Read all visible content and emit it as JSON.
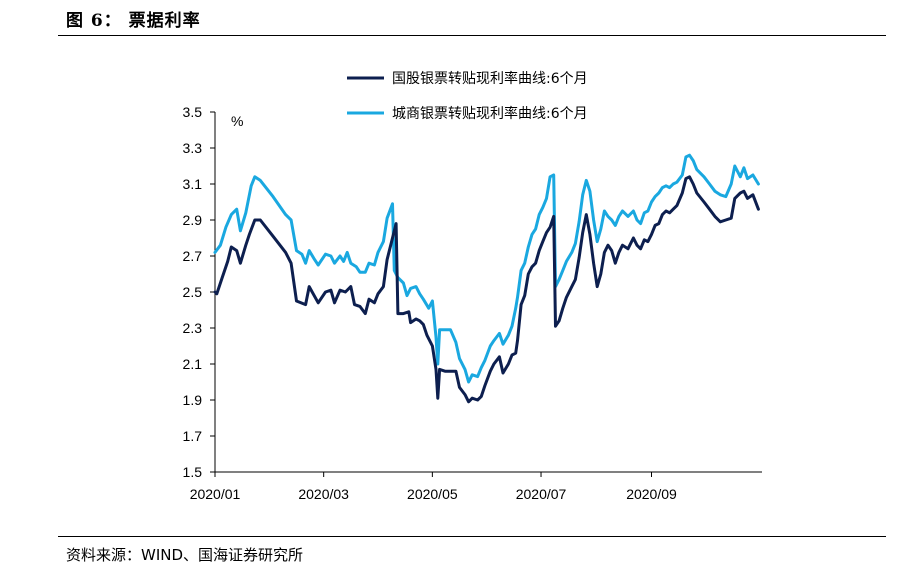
{
  "figure_title": "图 6：  票据利率",
  "source": "资料来源：WIND、国海证券研究所",
  "chart_data": {
    "type": "line",
    "unit_label": "%",
    "ylim": [
      1.5,
      3.5
    ],
    "yticks": [
      1.5,
      1.7,
      1.9,
      2.1,
      2.3,
      2.5,
      2.7,
      2.9,
      3.1,
      3.3,
      3.5
    ],
    "ytick_labels": [
      "1.5",
      "1.7",
      "1.9",
      "2.1",
      "2.3",
      "2.5",
      "2.7",
      "2.9",
      "3.1",
      "3.3",
      "3.5"
    ],
    "xlim": [
      "2020-01-02",
      "2020-10-30"
    ],
    "xticks": [
      "2020-01-02",
      "2020-03-02",
      "2020-05-01",
      "2020-06-30",
      "2020-08-30"
    ],
    "xtick_labels": [
      "2020/01",
      "2020/03",
      "2020/05",
      "2020/07",
      "2020/09"
    ],
    "grid": false,
    "legend_position": "top-center",
    "series": [
      {
        "name": "国股银票转贴现利率曲线:6个月",
        "color": "#0d1f4f",
        "points": [
          [
            "2020-01-02",
            2.5
          ],
          [
            "2020-01-03",
            2.49
          ],
          [
            "2020-01-06",
            2.58
          ],
          [
            "2020-01-09",
            2.67
          ],
          [
            "2020-01-11",
            2.75
          ],
          [
            "2020-01-14",
            2.73
          ],
          [
            "2020-01-16",
            2.66
          ],
          [
            "2020-01-19",
            2.76
          ],
          [
            "2020-01-21",
            2.82
          ],
          [
            "2020-01-24",
            2.9
          ],
          [
            "2020-01-27",
            2.9
          ],
          [
            "2020-02-03",
            2.81
          ],
          [
            "2020-02-10",
            2.72
          ],
          [
            "2020-02-13",
            2.66
          ],
          [
            "2020-02-16",
            2.45
          ],
          [
            "2020-02-21",
            2.43
          ],
          [
            "2020-02-23",
            2.53
          ],
          [
            "2020-02-28",
            2.44
          ],
          [
            "2020-03-03",
            2.5
          ],
          [
            "2020-03-06",
            2.51
          ],
          [
            "2020-03-08",
            2.44
          ],
          [
            "2020-03-11",
            2.51
          ],
          [
            "2020-03-14",
            2.5
          ],
          [
            "2020-03-17",
            2.53
          ],
          [
            "2020-03-19",
            2.43
          ],
          [
            "2020-03-22",
            2.42
          ],
          [
            "2020-03-25",
            2.38
          ],
          [
            "2020-03-27",
            2.46
          ],
          [
            "2020-03-30",
            2.44
          ],
          [
            "2020-04-01",
            2.49
          ],
          [
            "2020-04-04",
            2.53
          ],
          [
            "2020-04-06",
            2.68
          ],
          [
            "2020-04-09",
            2.8
          ],
          [
            "2020-04-11",
            2.88
          ],
          [
            "2020-04-12",
            2.38
          ],
          [
            "2020-04-15",
            2.38
          ],
          [
            "2020-04-18",
            2.39
          ],
          [
            "2020-04-19",
            2.33
          ],
          [
            "2020-04-22",
            2.35
          ],
          [
            "2020-04-24",
            2.34
          ],
          [
            "2020-04-26",
            2.32
          ],
          [
            "2020-04-28",
            2.26
          ],
          [
            "2020-05-01",
            2.2
          ],
          [
            "2020-05-03",
            2.07
          ],
          [
            "2020-05-04",
            1.91
          ],
          [
            "2020-05-05",
            2.07
          ],
          [
            "2020-05-08",
            2.06
          ],
          [
            "2020-05-11",
            2.06
          ],
          [
            "2020-05-14",
            2.06
          ],
          [
            "2020-05-16",
            1.97
          ],
          [
            "2020-05-19",
            1.93
          ],
          [
            "2020-05-21",
            1.89
          ],
          [
            "2020-05-23",
            1.91
          ],
          [
            "2020-05-26",
            1.9
          ],
          [
            "2020-05-28",
            1.92
          ],
          [
            "2020-05-30",
            1.98
          ],
          [
            "2020-06-02",
            2.06
          ],
          [
            "2020-06-04",
            2.1
          ],
          [
            "2020-06-07",
            2.14
          ],
          [
            "2020-06-09",
            2.05
          ],
          [
            "2020-06-12",
            2.1
          ],
          [
            "2020-06-14",
            2.15
          ],
          [
            "2020-06-16",
            2.16
          ],
          [
            "2020-06-17",
            2.23
          ],
          [
            "2020-06-19",
            2.43
          ],
          [
            "2020-06-21",
            2.48
          ],
          [
            "2020-06-23",
            2.6
          ],
          [
            "2020-06-25",
            2.64
          ],
          [
            "2020-06-27",
            2.66
          ],
          [
            "2020-06-29",
            2.73
          ],
          [
            "2020-07-01",
            2.78
          ],
          [
            "2020-07-03",
            2.83
          ],
          [
            "2020-07-05",
            2.86
          ],
          [
            "2020-07-07",
            2.92
          ],
          [
            "2020-07-08",
            2.31
          ],
          [
            "2020-07-10",
            2.34
          ],
          [
            "2020-07-12",
            2.41
          ],
          [
            "2020-07-14",
            2.47
          ],
          [
            "2020-07-17",
            2.53
          ],
          [
            "2020-07-19",
            2.57
          ],
          [
            "2020-07-21",
            2.69
          ],
          [
            "2020-07-23",
            2.83
          ],
          [
            "2020-07-25",
            2.93
          ],
          [
            "2020-07-27",
            2.82
          ],
          [
            "2020-07-29",
            2.66
          ],
          [
            "2020-07-31",
            2.53
          ],
          [
            "2020-08-02",
            2.6
          ],
          [
            "2020-08-04",
            2.72
          ],
          [
            "2020-08-06",
            2.76
          ],
          [
            "2020-08-08",
            2.73
          ],
          [
            "2020-08-10",
            2.66
          ],
          [
            "2020-08-12",
            2.72
          ],
          [
            "2020-08-14",
            2.76
          ],
          [
            "2020-08-17",
            2.74
          ],
          [
            "2020-08-20",
            2.8
          ],
          [
            "2020-08-22",
            2.76
          ],
          [
            "2020-08-24",
            2.74
          ],
          [
            "2020-08-26",
            2.79
          ],
          [
            "2020-08-28",
            2.78
          ],
          [
            "2020-08-30",
            2.82
          ],
          [
            "2020-09-01",
            2.87
          ],
          [
            "2020-09-03",
            2.88
          ],
          [
            "2020-09-05",
            2.93
          ],
          [
            "2020-09-07",
            2.95
          ],
          [
            "2020-09-09",
            2.94
          ],
          [
            "2020-09-11",
            2.96
          ],
          [
            "2020-09-13",
            2.98
          ],
          [
            "2020-09-16",
            3.05
          ],
          [
            "2020-09-18",
            3.13
          ],
          [
            "2020-09-20",
            3.14
          ],
          [
            "2020-09-22",
            3.1
          ],
          [
            "2020-09-24",
            3.05
          ],
          [
            "2020-09-28",
            3.0
          ],
          [
            "2020-10-01",
            2.96
          ],
          [
            "2020-10-04",
            2.92
          ],
          [
            "2020-10-07",
            2.89
          ],
          [
            "2020-10-10",
            2.9
          ],
          [
            "2020-10-13",
            2.91
          ],
          [
            "2020-10-15",
            3.02
          ],
          [
            "2020-10-18",
            3.05
          ],
          [
            "2020-10-20",
            3.06
          ],
          [
            "2020-10-22",
            3.02
          ],
          [
            "2020-10-25",
            3.04
          ],
          [
            "2020-10-28",
            2.96
          ]
        ]
      },
      {
        "name": "城商银票转贴现利率曲线:6个月",
        "color": "#1aa8e0",
        "points": [
          [
            "2020-01-02",
            2.72
          ],
          [
            "2020-01-05",
            2.76
          ],
          [
            "2020-01-08",
            2.86
          ],
          [
            "2020-01-11",
            2.93
          ],
          [
            "2020-01-14",
            2.96
          ],
          [
            "2020-01-16",
            2.84
          ],
          [
            "2020-01-19",
            2.94
          ],
          [
            "2020-01-22",
            3.09
          ],
          [
            "2020-01-24",
            3.14
          ],
          [
            "2020-01-27",
            3.12
          ],
          [
            "2020-02-03",
            3.03
          ],
          [
            "2020-02-10",
            2.93
          ],
          [
            "2020-02-13",
            2.9
          ],
          [
            "2020-02-16",
            2.73
          ],
          [
            "2020-02-19",
            2.71
          ],
          [
            "2020-02-21",
            2.66
          ],
          [
            "2020-02-23",
            2.73
          ],
          [
            "2020-02-26",
            2.68
          ],
          [
            "2020-02-28",
            2.65
          ],
          [
            "2020-03-03",
            2.71
          ],
          [
            "2020-03-06",
            2.7
          ],
          [
            "2020-03-08",
            2.66
          ],
          [
            "2020-03-11",
            2.7
          ],
          [
            "2020-03-13",
            2.67
          ],
          [
            "2020-03-15",
            2.72
          ],
          [
            "2020-03-17",
            2.66
          ],
          [
            "2020-03-20",
            2.64
          ],
          [
            "2020-03-22",
            2.61
          ],
          [
            "2020-03-25",
            2.61
          ],
          [
            "2020-03-27",
            2.66
          ],
          [
            "2020-03-30",
            2.65
          ],
          [
            "2020-04-01",
            2.72
          ],
          [
            "2020-04-04",
            2.78
          ],
          [
            "2020-04-06",
            2.91
          ],
          [
            "2020-04-09",
            2.99
          ],
          [
            "2020-04-10",
            2.62
          ],
          [
            "2020-04-12",
            2.58
          ],
          [
            "2020-04-15",
            2.55
          ],
          [
            "2020-04-17",
            2.48
          ],
          [
            "2020-04-19",
            2.52
          ],
          [
            "2020-04-22",
            2.53
          ],
          [
            "2020-04-24",
            2.49
          ],
          [
            "2020-04-26",
            2.46
          ],
          [
            "2020-04-29",
            2.41
          ],
          [
            "2020-05-01",
            2.45
          ],
          [
            "2020-05-03",
            2.25
          ],
          [
            "2020-05-04",
            2.1
          ],
          [
            "2020-05-05",
            2.29
          ],
          [
            "2020-05-08",
            2.29
          ],
          [
            "2020-05-11",
            2.29
          ],
          [
            "2020-05-14",
            2.22
          ],
          [
            "2020-05-16",
            2.13
          ],
          [
            "2020-05-19",
            2.07
          ],
          [
            "2020-05-21",
            2.0
          ],
          [
            "2020-05-23",
            2.04
          ],
          [
            "2020-05-26",
            2.03
          ],
          [
            "2020-05-28",
            2.08
          ],
          [
            "2020-05-30",
            2.12
          ],
          [
            "2020-06-02",
            2.2
          ],
          [
            "2020-06-04",
            2.23
          ],
          [
            "2020-06-07",
            2.27
          ],
          [
            "2020-06-09",
            2.21
          ],
          [
            "2020-06-12",
            2.26
          ],
          [
            "2020-06-14",
            2.31
          ],
          [
            "2020-06-16",
            2.41
          ],
          [
            "2020-06-17",
            2.47
          ],
          [
            "2020-06-19",
            2.62
          ],
          [
            "2020-06-21",
            2.66
          ],
          [
            "2020-06-23",
            2.75
          ],
          [
            "2020-06-25",
            2.82
          ],
          [
            "2020-06-27",
            2.85
          ],
          [
            "2020-06-29",
            2.93
          ],
          [
            "2020-07-01",
            2.97
          ],
          [
            "2020-07-03",
            3.02
          ],
          [
            "2020-07-05",
            3.14
          ],
          [
            "2020-07-07",
            3.15
          ],
          [
            "2020-07-08",
            2.53
          ],
          [
            "2020-07-10",
            2.57
          ],
          [
            "2020-07-12",
            2.62
          ],
          [
            "2020-07-14",
            2.67
          ],
          [
            "2020-07-17",
            2.72
          ],
          [
            "2020-07-19",
            2.77
          ],
          [
            "2020-07-21",
            2.89
          ],
          [
            "2020-07-23",
            3.04
          ],
          [
            "2020-07-25",
            3.12
          ],
          [
            "2020-07-27",
            3.06
          ],
          [
            "2020-07-29",
            2.9
          ],
          [
            "2020-07-31",
            2.78
          ],
          [
            "2020-08-02",
            2.85
          ],
          [
            "2020-08-04",
            2.95
          ],
          [
            "2020-08-06",
            2.92
          ],
          [
            "2020-08-08",
            2.9
          ],
          [
            "2020-08-10",
            2.87
          ],
          [
            "2020-08-12",
            2.92
          ],
          [
            "2020-08-14",
            2.95
          ],
          [
            "2020-08-17",
            2.92
          ],
          [
            "2020-08-20",
            2.95
          ],
          [
            "2020-08-22",
            2.9
          ],
          [
            "2020-08-24",
            2.88
          ],
          [
            "2020-08-26",
            2.94
          ],
          [
            "2020-08-28",
            2.95
          ],
          [
            "2020-08-30",
            3.0
          ],
          [
            "2020-09-01",
            3.03
          ],
          [
            "2020-09-03",
            3.05
          ],
          [
            "2020-09-05",
            3.08
          ],
          [
            "2020-09-07",
            3.09
          ],
          [
            "2020-09-09",
            3.08
          ],
          [
            "2020-09-11",
            3.1
          ],
          [
            "2020-09-13",
            3.11
          ],
          [
            "2020-09-16",
            3.15
          ],
          [
            "2020-09-18",
            3.25
          ],
          [
            "2020-09-20",
            3.26
          ],
          [
            "2020-09-22",
            3.23
          ],
          [
            "2020-09-24",
            3.18
          ],
          [
            "2020-09-28",
            3.14
          ],
          [
            "2020-10-01",
            3.1
          ],
          [
            "2020-10-04",
            3.06
          ],
          [
            "2020-10-07",
            3.04
          ],
          [
            "2020-10-10",
            3.03
          ],
          [
            "2020-10-13",
            3.1
          ],
          [
            "2020-10-15",
            3.2
          ],
          [
            "2020-10-18",
            3.14
          ],
          [
            "2020-10-20",
            3.19
          ],
          [
            "2020-10-22",
            3.13
          ],
          [
            "2020-10-25",
            3.15
          ],
          [
            "2020-10-28",
            3.1
          ]
        ]
      }
    ]
  }
}
